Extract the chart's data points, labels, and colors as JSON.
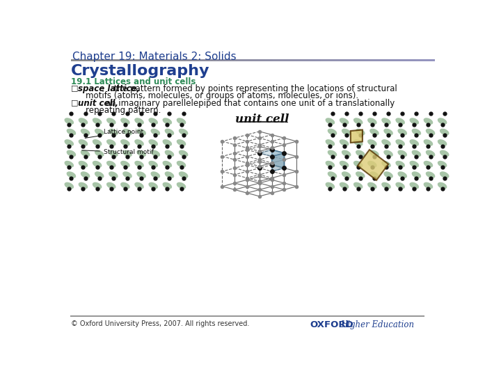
{
  "title": "Chapter 19: Materials 2: Solids",
  "subtitle": "Crystallography",
  "section": "19.1 Lattices and unit cells",
  "bullet1_bold": "space lattice,",
  "bullet1_normal": " the pattern formed by points representing the locations of structural",
  "bullet1_cont": "motifs (atoms, molecules, or groups of atoms, molecules, or ions).",
  "bullet2_bold": "unit cell,",
  "bullet2_normal": " an imaginary parellelepiped that contains one unit of a translationally",
  "bullet2_cont": "repeating pattern.",
  "unit_cell_label": "unit cell",
  "lattice_point_label": "Lattice point",
  "structural_motif_label": "Structural motif",
  "copyright": "© Oxford University Press, 2007. All rights reserved.",
  "oxford_text": "OXFORD",
  "higher_ed_text": "Higher Education",
  "title_color": "#1f3f8f",
  "subtitle_color": "#1f3f8f",
  "section_color": "#2e8b57",
  "bg_color": "#ffffff",
  "lattice_dot_color": "#111111",
  "motif_color": "#99bb99",
  "cube_light_node": "#888888",
  "cube_dark_node": "#111111",
  "cube_line_color": "#666666",
  "cube_face_color": "#99bbcc",
  "cube_face_alpha": 0.65,
  "unit_cell_2d_color": "#ddcc77",
  "oxford_color": "#1f3f8f",
  "footer_text_color": "#333333",
  "square_color": "#ddcc77"
}
